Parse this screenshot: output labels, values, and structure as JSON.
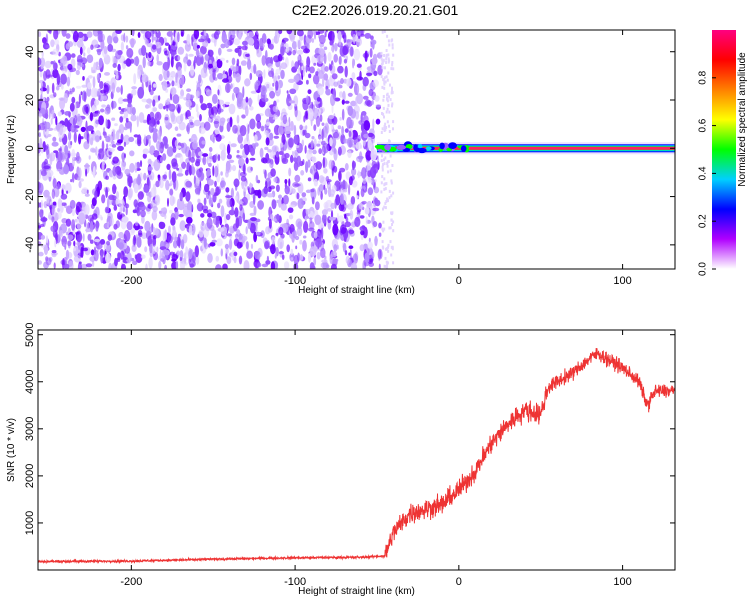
{
  "page": {
    "title": "C2E2.2026.019.20.21.G01"
  },
  "chart_data": [
    {
      "type": "heatmap",
      "xlabel": "Height of straight line (km)",
      "ylabel": "Frequency (Hz)",
      "xlim": [
        -257,
        132
      ],
      "ylim": [
        -50,
        49
      ],
      "x_ticks": [
        -200,
        -100,
        0,
        100
      ],
      "y_ticks": [
        -40,
        -20,
        0,
        20,
        40
      ],
      "noise_region_x": [
        -257,
        -48
      ],
      "signal_line": {
        "x_start": -50,
        "x_end": 132,
        "frequency": 0
      },
      "colorbar": {
        "label": "Normalized spectral amplitude",
        "range": [
          0,
          1
        ],
        "ticks": [
          "0.0",
          "0.2",
          "0.4",
          "0.6",
          "0.8"
        ],
        "tick_values": [
          0.0,
          0.2,
          0.4,
          0.6,
          0.8
        ],
        "colors": [
          "#ffffff",
          "#b000ff",
          "#0000ff",
          "#00d0ff",
          "#00ff00",
          "#ffff00",
          "#ff8000",
          "#ff0000",
          "#ff0080"
        ]
      },
      "grid": false
    },
    {
      "type": "line",
      "xlabel": "Height of straight line (km)",
      "ylabel": "SNR (10 * v/v)",
      "xlim": [
        -257,
        132
      ],
      "ylim": [
        0,
        5100
      ],
      "x_ticks": [
        -200,
        -100,
        0,
        100
      ],
      "y_ticks": [
        1000,
        2000,
        3000,
        4000,
        5000
      ],
      "color": "#ee3333",
      "series": [
        {
          "x": [
            -257,
            -200,
            -150,
            -100,
            -60,
            -45,
            -40,
            -30,
            -20,
            -10,
            0,
            10,
            20,
            30,
            40,
            50,
            53,
            55,
            60,
            70,
            80,
            85,
            90,
            100,
            110,
            115,
            120,
            132
          ],
          "y": [
            180,
            190,
            230,
            260,
            270,
            300,
            800,
            1200,
            1300,
            1400,
            1700,
            2100,
            2700,
            3100,
            3400,
            3300,
            3700,
            3900,
            4000,
            4200,
            4500,
            4600,
            4500,
            4300,
            4000,
            3500,
            3800,
            3800
          ]
        }
      ],
      "grid": false
    }
  ]
}
